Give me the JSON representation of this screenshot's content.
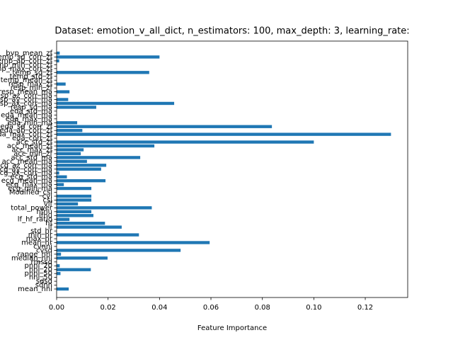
{
  "chart_data": {
    "type": "barh",
    "title": "Dataset: emotion_v_all_dict, n_estimators: 100, max_depth: 3, learning_rate:",
    "x_label": "Feature Importance",
    "color": "#1f77b4",
    "categories": [
      "mean_nni",
      "sdnn",
      "sdsd",
      "nni_50",
      "pnni_50",
      "nni_20",
      "pnni_20",
      "rmssd",
      "median_nni",
      "range_nni",
      "cvsd",
      "cvnni",
      "mean_hr",
      "max_hr",
      "min_hr",
      "std_hr",
      "lf",
      "hf",
      "lf_hf_ratio",
      "lfnu",
      "hfnu",
      "total_power",
      "vlf",
      "csi",
      "cvi",
      "Modified_csi",
      "ecg_min_ma",
      "ecg_max_ma",
      "ecg_mean_ma",
      "ecg_std_ma",
      "ecg_ax_corr_ma",
      "ecg_ay_corr_ma",
      "ecg_az_corr_ma",
      "acc_mean_ma",
      "acc_std_ma",
      "acc_min_zf",
      "acc_max_zf",
      "acc_mean_zf",
      "acc_std_zf",
      "eda_corr_zf",
      "eda_max_corr_zf",
      "eda_ab_corr_zf",
      "eda_sd_corr_zf",
      "eda_min_ma",
      "eda_max_ma",
      "eda_mean_ma",
      "eda_std_ma",
      "resp_sd_ma",
      "resp_ax_corr_ma",
      "resp_ay_corr_ma",
      "resp_az_corr_ma",
      "resp_mean_ma",
      "resp_min_zf",
      "resp_max_zf",
      "temp_mean_zf",
      "temp_std_zf",
      "temp_sd_zf",
      "temp_max_corr_zf",
      "temp_min_corr_zf",
      "temp_ab_corr_zf",
      "temp_sd_corr_zf",
      "bvp_mean_zf"
    ],
    "values": [
      0.0047,
      0,
      0,
      0,
      0.0015,
      0.0133,
      0.0012,
      0,
      0.0198,
      0.0017,
      0.0482,
      0,
      0.0595,
      0,
      0.032,
      0,
      0.0253,
      0.0188,
      0.005,
      0.0143,
      0.0135,
      0.037,
      0.0083,
      0.0135,
      0.0135,
      0,
      0.0135,
      0.0028,
      0.019,
      0.004,
      0.001,
      0.0173,
      0.0193,
      0.0118,
      0.0325,
      0.0094,
      0.0105,
      0.038,
      0.1,
      0,
      0.13,
      0.01,
      0.0837,
      0.008,
      0,
      0,
      0,
      0.0154,
      0.0457,
      0.0045,
      0,
      0.005,
      0,
      0.0035,
      0,
      0,
      0.036,
      0,
      0,
      0.001,
      0.04,
      0.0012
    ],
    "xlim": [
      0,
      0.1365
    ],
    "xticks": [
      {
        "value": 0,
        "label": "0.00"
      },
      {
        "value": 0.02,
        "label": "0.02"
      },
      {
        "value": 0.04,
        "label": "0.04"
      },
      {
        "value": 0.06,
        "label": "0.06"
      },
      {
        "value": 0.08,
        "label": "0.08"
      },
      {
        "value": 0.1,
        "label": "0.10"
      },
      {
        "value": 0.12,
        "label": "0.12"
      }
    ]
  }
}
